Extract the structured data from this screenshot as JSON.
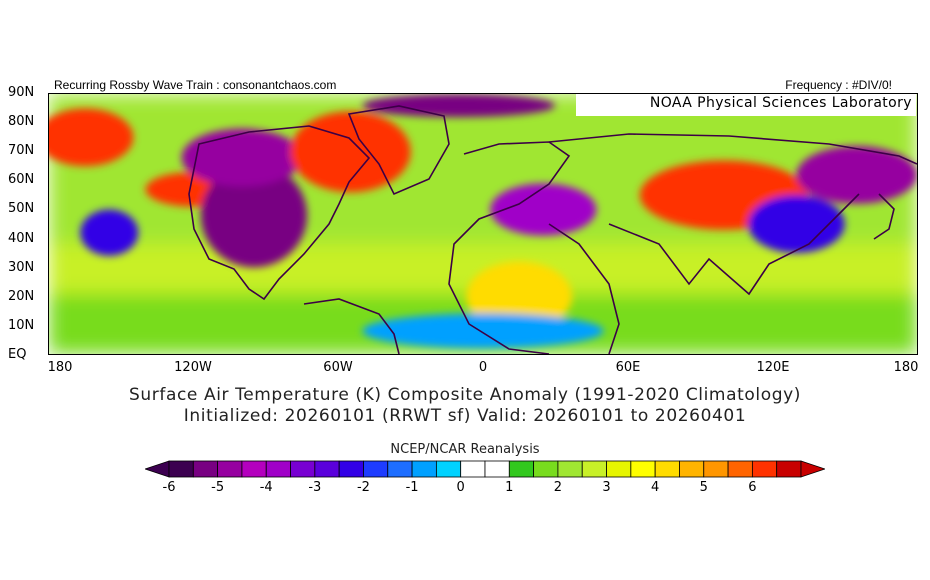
{
  "header": {
    "left_text": "Recurring Rossby Wave Train : consonantchaos.com",
    "right_text": "Frequency : #DIV/0!",
    "lab": "NOAA Physical Sciences Laboratory"
  },
  "axes": {
    "lat_labels": [
      "90N",
      "80N",
      "70N",
      "60N",
      "50N",
      "40N",
      "30N",
      "20N",
      "10N",
      "EQ"
    ],
    "lon_labels": [
      "180",
      "120W",
      "60W",
      "0",
      "60E",
      "120E",
      "180"
    ]
  },
  "title": {
    "line1": "Surface Air Temperature (K) Composite Anomaly (1991-2020 Climatology)",
    "line2": "Initialized: 20260101 (RRWT sf) Valid: 20260101 to 20260401"
  },
  "colorbar": {
    "source": "NCEP/NCAR Reanalysis",
    "tick_labels": [
      "-6",
      "-5",
      "-4",
      "-3",
      "-2",
      "-1",
      "0",
      "1",
      "2",
      "3",
      "4",
      "5",
      "6"
    ],
    "colors": [
      "#3c0050",
      "#780082",
      "#9600a0",
      "#b400be",
      "#a000c8",
      "#7800d2",
      "#5a00dc",
      "#3200e6",
      "#1e3cff",
      "#1e6eff",
      "#00a0ff",
      "#00d2ff",
      "#ffffff",
      "#ffffff",
      "#32c81e",
      "#78dc1e",
      "#a0e632",
      "#c8f028",
      "#e6f500",
      "#ffff00",
      "#ffdc00",
      "#ffb400",
      "#ff9600",
      "#ff6400",
      "#ff3200",
      "#c80000"
    ],
    "under_color": "#3c0050",
    "over_color": "#c80000"
  },
  "map": {
    "anomaly_regions": [
      {
        "lon": -165,
        "lat": 75,
        "rx": 20,
        "ry": 10,
        "anomaly": 5.5
      },
      {
        "lon": -155,
        "lat": 42,
        "rx": 12,
        "ry": 8,
        "anomaly": -2.5
      },
      {
        "lon": -120,
        "lat": 57,
        "rx": 20,
        "ry": 6,
        "anomaly": 5.5
      },
      {
        "lon": -95,
        "lat": 48,
        "rx": 22,
        "ry": 18,
        "anomaly": -5.5
      },
      {
        "lon": -100,
        "lat": 68,
        "rx": 25,
        "ry": 10,
        "anomaly": -5
      },
      {
        "lon": -55,
        "lat": 70,
        "rx": 25,
        "ry": 14,
        "anomaly": 5.5
      },
      {
        "lon": -10,
        "lat": 86,
        "rx": 40,
        "ry": 4,
        "anomaly": -5.5
      },
      {
        "lon": 25,
        "lat": 50,
        "rx": 22,
        "ry": 9,
        "anomaly": -4
      },
      {
        "lon": 15,
        "lat": 20,
        "rx": 22,
        "ry": 12,
        "anomaly": 3.5
      },
      {
        "lon": 100,
        "lat": 55,
        "rx": 35,
        "ry": 12,
        "anomaly": 5.5
      },
      {
        "lon": 155,
        "lat": 62,
        "rx": 25,
        "ry": 10,
        "anomaly": -5
      },
      {
        "lon": 130,
        "lat": 45,
        "rx": 20,
        "ry": 10,
        "anomaly": -2.5
      },
      {
        "lon": 0,
        "lat": 8,
        "rx": 50,
        "ry": 6,
        "anomaly": -1
      }
    ]
  }
}
